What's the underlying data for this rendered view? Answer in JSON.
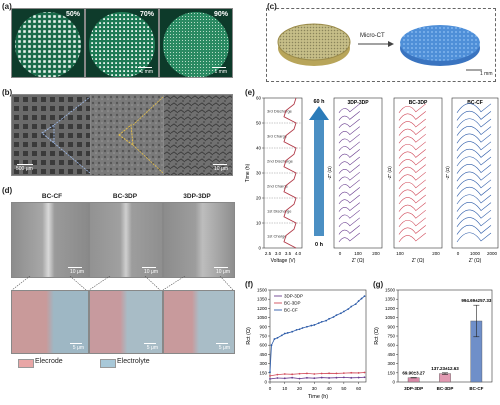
{
  "panels": {
    "a": "(a)",
    "b": "(b)",
    "c": "(c)",
    "d": "(d)",
    "e": "(e)",
    "f": "(f)",
    "g": "(g)"
  },
  "panel_a": {
    "percents": [
      "50%",
      "70%",
      "90%"
    ],
    "scale": "1 mm"
  },
  "panel_b": {
    "scales": [
      "500 μm",
      "10 μm"
    ]
  },
  "panel_c": {
    "arrow_label": "Micro-CT",
    "scale": "1 mm"
  },
  "panel_d": {
    "headers": [
      "BC-CF",
      "BC-3DP",
      "3DP-3DP"
    ],
    "scale_top": "10 μm",
    "scale_bottom": "5 μm",
    "legend": [
      "Elecrode",
      "Electrolyte"
    ],
    "colors": {
      "electrode": "#e8a6a6",
      "electrolyte": "#a8c8d8"
    }
  },
  "panel_e": {
    "voltage_axis_label": "Voltage (V)",
    "time_axis_label": "Time (h)",
    "voltage_ticks": [
      "2.5",
      "3.0",
      "3.5",
      "4.0"
    ],
    "time_ticks": [
      "0",
      "10",
      "20",
      "30",
      "40",
      "50",
      "60"
    ],
    "steps": [
      "3rd Discharge",
      "3rd Charge",
      "2nd Discharge",
      "2nd Charge",
      "1st Discharge",
      "1st Charge"
    ],
    "arrow_top": "60 h",
    "arrow_bottom": "0 h",
    "titles": [
      "3DP-3DP",
      "BC-3DP",
      "BC-CF"
    ],
    "y_label": "-Z'' (Ω)",
    "x_label": "Z' (Ω)",
    "x_ticks_1": [
      "0",
      "100",
      "200"
    ],
    "x_ticks_2": [
      "100",
      "200"
    ],
    "x_ticks_3": [
      "0",
      "1000",
      "2000"
    ],
    "colors": {
      "3DP-3DP": "#6a3d8f",
      "BC-3DP": "#d14a5a",
      "BC-CF": "#2b5aa8",
      "arrow": "#2b7bb9"
    }
  },
  "chart_data": [
    {
      "type": "line",
      "panel": "f",
      "xlabel": "Time (h)",
      "ylabel": "Rct (Ω)",
      "xlim": [
        0,
        65
      ],
      "ylim": [
        0,
        1500
      ],
      "x_ticks": [
        0,
        10,
        20,
        30,
        40,
        50,
        60
      ],
      "y_ticks": [
        0,
        150,
        300,
        450,
        600,
        750,
        900,
        1050,
        1200,
        1350,
        1500
      ],
      "legend_position": "top-left",
      "series": [
        {
          "name": "3DP-3DP",
          "color": "#6a3d8f",
          "x": [
            0,
            5,
            10,
            15,
            20,
            25,
            30,
            35,
            40,
            45,
            50,
            55,
            60,
            64
          ],
          "y": [
            50,
            65,
            60,
            70,
            55,
            68,
            62,
            72,
            66,
            70,
            75,
            68,
            72,
            78
          ]
        },
        {
          "name": "BC-3DP",
          "color": "#d14a5a",
          "x": [
            0,
            5,
            10,
            15,
            20,
            25,
            30,
            35,
            40,
            45,
            50,
            55,
            60,
            64
          ],
          "y": [
            100,
            120,
            130,
            125,
            135,
            140,
            130,
            138,
            142,
            140,
            145,
            150,
            148,
            155
          ]
        },
        {
          "name": "BC-CF",
          "color": "#2b5aa8",
          "x": [
            0,
            1,
            3,
            5,
            8,
            10,
            12,
            15,
            18,
            20,
            22,
            25,
            28,
            30,
            33,
            35,
            38,
            40,
            43,
            45,
            48,
            50,
            53,
            55,
            58,
            60,
            62,
            64
          ],
          "y": [
            160,
            600,
            700,
            720,
            760,
            790,
            800,
            820,
            850,
            860,
            880,
            900,
            920,
            930,
            960,
            980,
            1000,
            1030,
            1060,
            1090,
            1120,
            1150,
            1190,
            1230,
            1270,
            1320,
            1360,
            1400
          ]
        }
      ]
    },
    {
      "type": "bar",
      "panel": "g",
      "ylabel": "Rct (Ω)",
      "ylim": [
        0,
        1500
      ],
      "y_ticks": [
        0,
        150,
        300,
        450,
        600,
        750,
        900,
        1050,
        1200,
        1350,
        1500
      ],
      "categories": [
        "3DP-3DP",
        "BC-3DP",
        "BC-CF"
      ],
      "values": [
        69.9,
        137.23,
        994.69
      ],
      "errors": [
        3.27,
        12.63,
        257.33
      ],
      "labels": [
        "69.90±3.27",
        "137.23±12.63",
        "994.69±257.33"
      ],
      "colors": [
        "#d98aa8",
        "#e29ab2",
        "#6f8fc9"
      ]
    }
  ]
}
